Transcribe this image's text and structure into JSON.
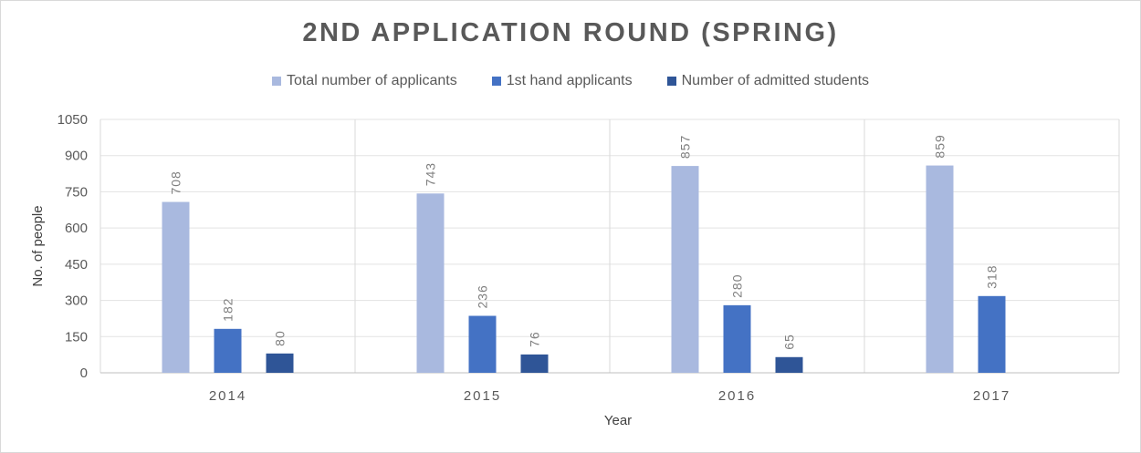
{
  "chart_data": {
    "type": "bar",
    "title": "2ND APPLICATION ROUND (SPRING)",
    "xlabel": "Year",
    "ylabel": "No. of people",
    "categories": [
      "2014",
      "2015",
      "2016",
      "2017"
    ],
    "series": [
      {
        "name": "Total number of applicants",
        "color": "#a9b9df",
        "values": [
          708,
          743,
          857,
          859
        ]
      },
      {
        "name": "1st hand applicants",
        "color": "#4472c4",
        "values": [
          182,
          236,
          280,
          318
        ]
      },
      {
        "name": "Number of admitted students",
        "color": "#2f5597",
        "values": [
          80,
          76,
          65,
          null
        ]
      }
    ],
    "ylim": [
      0,
      1050
    ],
    "yticks": [
      0,
      150,
      300,
      450,
      600,
      750,
      900,
      1050
    ],
    "grid": "horizontal",
    "category_separators": true,
    "legend": "top-center"
  }
}
